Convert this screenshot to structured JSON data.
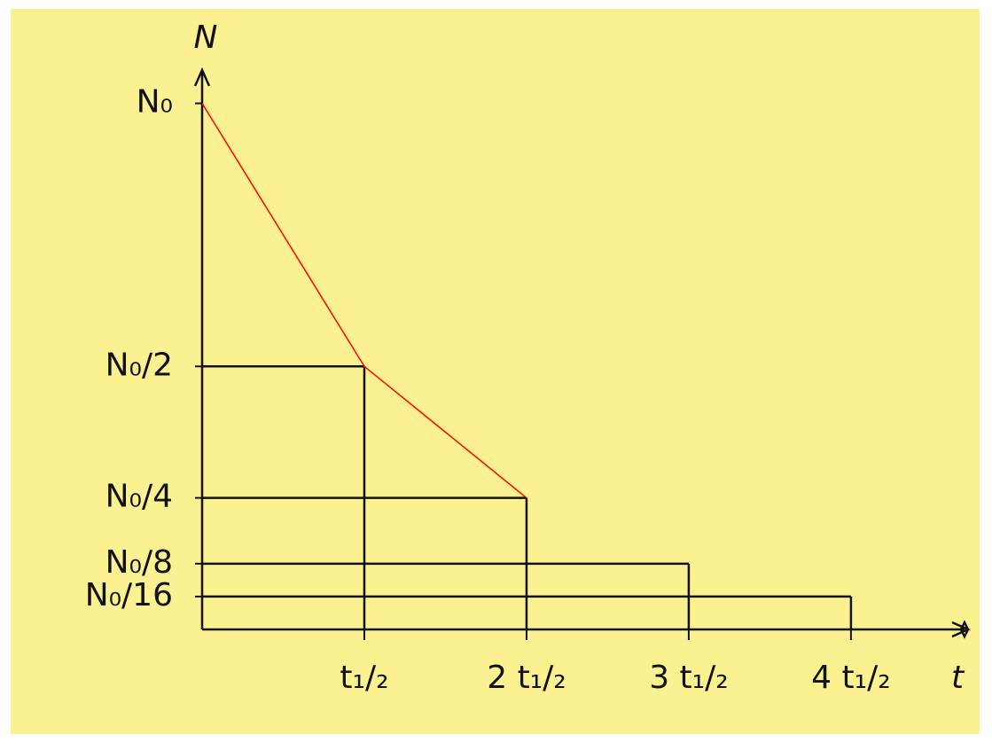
{
  "chart_data": {
    "type": "line",
    "x_label": "t",
    "y_label": "N",
    "x": [
      0,
      1,
      2
    ],
    "series": [
      {
        "color": "#ff0000",
        "values": [
          1,
          0.5,
          0.25
        ]
      }
    ],
    "xlim": [
      0,
      4.7
    ],
    "ylim": [
      0,
      1.06
    ],
    "xticks": [
      {
        "value": 1,
        "label": "t₁/₂"
      },
      {
        "value": 2,
        "label": "2 t₁/₂"
      },
      {
        "value": 3,
        "label": "3 t₁/₂"
      },
      {
        "value": 4,
        "label": "4 t₁/₂"
      }
    ],
    "yticks": [
      {
        "value": 1,
        "label": "N₀"
      },
      {
        "value": 0.5,
        "label": "N₀/2"
      },
      {
        "value": 0.25,
        "label": "N₀/4"
      },
      {
        "value": 0.125,
        "label": "N₀/8"
      },
      {
        "value": 0.0625,
        "label": "N₀/16"
      }
    ],
    "guides": true
  }
}
